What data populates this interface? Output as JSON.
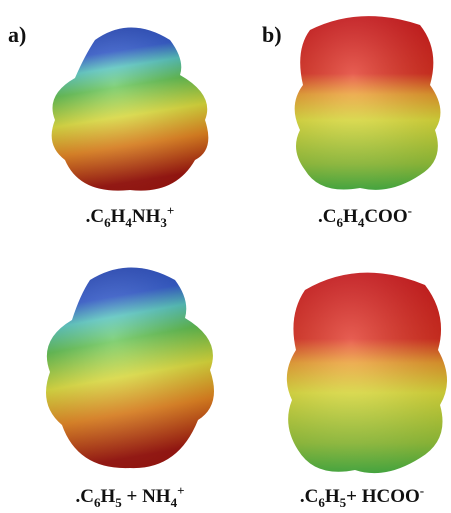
{
  "panels": [
    {
      "label": "a)"
    },
    {
      "label": "b)"
    }
  ],
  "captions": [
    {
      "parts": [
        ".C",
        "6",
        "H",
        "4",
        "NH",
        "3",
        "+"
      ]
    },
    {
      "parts": [
        ".C",
        "6",
        "H",
        "4",
        "COO",
        "-"
      ]
    },
    {
      "parts": [
        ".C",
        "6",
        "H",
        "5",
        " + NH",
        "4",
        "+"
      ]
    },
    {
      "parts": [
        ".C",
        "6",
        "H",
        "5",
        "+ HCOO",
        "-"
      ]
    }
  ]
}
